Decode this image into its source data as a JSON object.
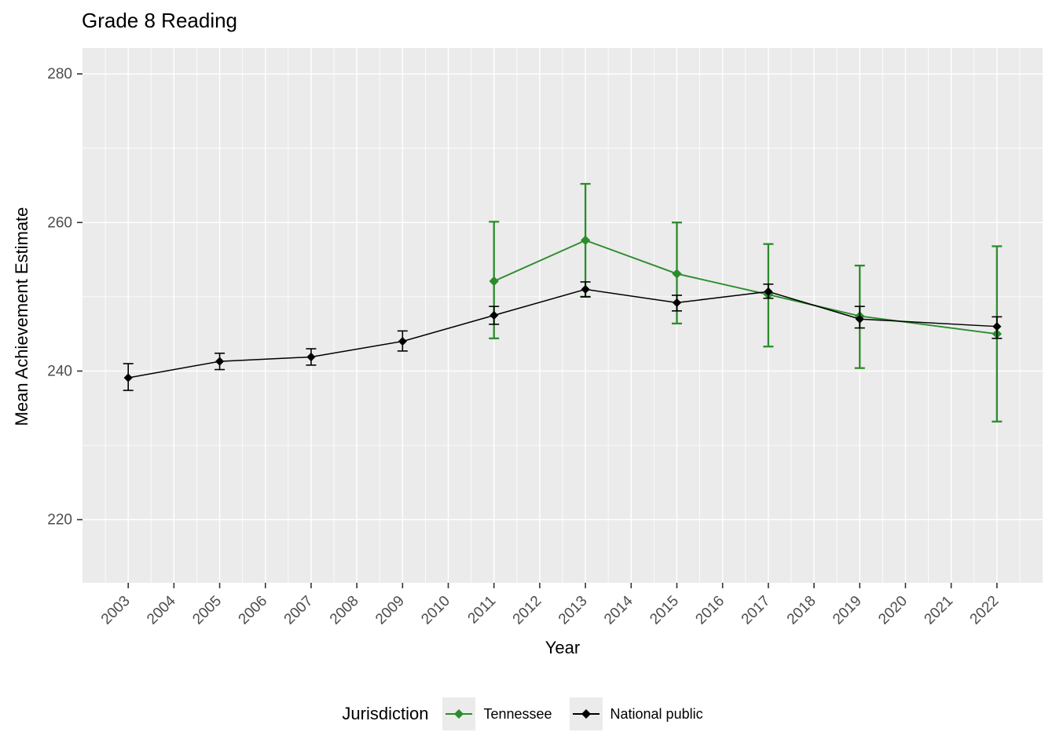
{
  "chart_data": {
    "type": "line",
    "title": "Grade 8 Reading",
    "xlabel": "Year",
    "ylabel": "Mean Achievement Estimate",
    "legend_title": "Jurisdiction",
    "legend_position": "bottom",
    "grid": true,
    "panel_bg": "#ebebeb",
    "grid_color": "#ffffff",
    "tick_text_color": "#4d4d4d",
    "tick_mark_color": "#333333",
    "xlim": [
      2002,
      2023
    ],
    "ylim": [
      211.5,
      283.5
    ],
    "x_major_ticks": [
      2003,
      2004,
      2005,
      2006,
      2007,
      2008,
      2009,
      2010,
      2011,
      2012,
      2013,
      2014,
      2015,
      2016,
      2017,
      2018,
      2019,
      2020,
      2021,
      2022
    ],
    "x_tick_labels": [
      "2003",
      "2004",
      "2005",
      "2006",
      "2007",
      "2008",
      "2009",
      "2010",
      "2011",
      "2012",
      "2013",
      "2014",
      "2015",
      "2016",
      "2017",
      "2018",
      "2019",
      "2020",
      "2021",
      "2022"
    ],
    "y_major_ticks": [
      220,
      240,
      260,
      280
    ],
    "y_tick_labels": [
      "220",
      "240",
      "260",
      "280"
    ],
    "y_minor_ticks": [
      230,
      250,
      270
    ],
    "series": [
      {
        "name": "Tennessee",
        "color": "#2b8c2b",
        "x": [
          2011,
          2013,
          2015,
          2017,
          2019,
          2022
        ],
        "y": [
          252.1,
          257.6,
          253.1,
          250.3,
          247.4,
          245.0
        ],
        "ci_low": [
          244.4,
          250.0,
          246.4,
          243.3,
          240.4,
          233.2
        ],
        "ci_high": [
          260.1,
          265.2,
          260.0,
          257.1,
          254.2,
          256.8
        ]
      },
      {
        "name": "National public",
        "color": "#000000",
        "x": [
          2003,
          2005,
          2007,
          2009,
          2011,
          2013,
          2015,
          2017,
          2019,
          2022
        ],
        "y": [
          239.1,
          241.3,
          241.9,
          244.0,
          247.5,
          251.0,
          249.2,
          250.7,
          247.0,
          246.0
        ],
        "ci_low": [
          237.4,
          240.2,
          240.8,
          242.7,
          246.3,
          250.0,
          248.1,
          249.8,
          245.8,
          244.4
        ],
        "ci_high": [
          241.0,
          242.4,
          243.0,
          245.4,
          248.7,
          252.0,
          250.2,
          251.7,
          248.7,
          247.3
        ]
      }
    ]
  }
}
